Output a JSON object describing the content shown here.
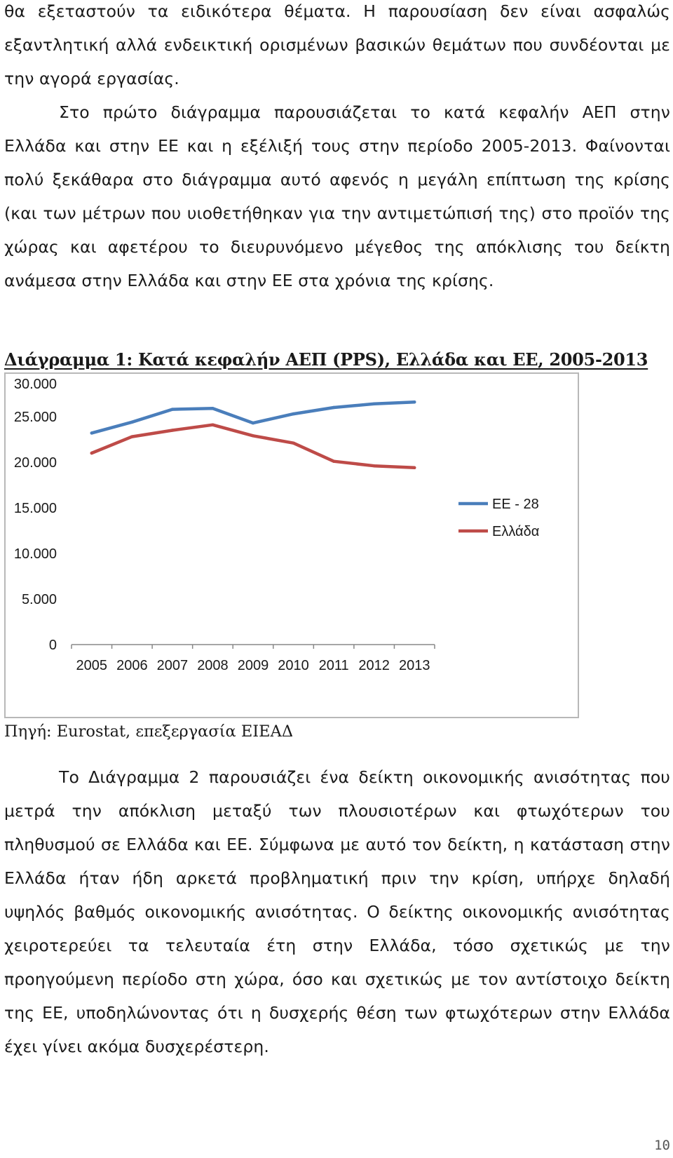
{
  "document": {
    "paragraph_1_part_a": "θα εξεταστούν τα ειδικότερα θέματα. Η παρουσίαση δεν είναι ασφαλώς εξαντλητική αλλά ενδεικτική ορισμένων βασικών θεμάτων που συνδέονται με την αγορά εργασίας.",
    "paragraph_1_part_b": "Στο πρώτο διάγραμμα παρουσιάζεται το κατά κεφαλήν ΑΕΠ στην Ελλάδα και στην ΕΕ και η εξέλιξή τους στην περίοδο 2005-2013. Φαίνονται πολύ ξεκάθαρα στο διάγραμμα αυτό αφενός η μεγάλη επίπτωση της κρίσης (και των μέτρων που υιοθετήθηκαν για την αντιμετώπισή της) στο προϊόν της χώρας και αφετέρου το διευρυνόμενο μέγεθος της απόκλισης του δείκτη ανάμεσα στην Ελλάδα και στην ΕΕ στα χρόνια της κρίσης.",
    "chart_caption": "Διάγραμμα 1: Κατά κεφαλήν ΑΕΠ (PPS), Ελλάδα και ΕΕ, 2005-2013",
    "source": "Πηγή: Eurostat, επεξεργασία ΕΙΕΑΔ",
    "paragraph_2": "Το Διάγραμμα 2 παρουσιάζει ένα δείκτη οικονομικής ανισότητας που μετρά την απόκλιση μεταξύ των πλουσιοτέρων και φτωχότερων του πληθυσμού σε Ελλάδα και ΕΕ. Σύμφωνα με αυτό τον δείκτη, η κατάσταση στην Ελλάδα ήταν ήδη αρκετά προβληματική πριν την κρίση, υπήρχε δηλαδή υψηλός βαθμός οικονομικής ανισότητας. Ο δείκτης οικονομικής ανισότητας χειροτερεύει τα τελευταία έτη στην Ελλάδα, τόσο σχετικώς με την προηγούμενη περίοδο στη χώρα, όσο και σχετικώς με τον αντίστοιχο δείκτη της ΕΕ, υποδηλώνοντας ότι η δυσχερής θέση των φτωχότερων στην Ελλάδα έχει γίνει ακόμα δυσχερέστερη.",
    "page_number": "10"
  },
  "chart_data": {
    "type": "line",
    "title": "Διάγραμμα 1: Κατά κεφαλήν ΑΕΠ (PPS), Ελλάδα και ΕΕ, 2005-2013",
    "xlabel": "",
    "ylabel": "",
    "categories": [
      "2005",
      "2006",
      "2007",
      "2008",
      "2009",
      "2010",
      "2011",
      "2012",
      "2013"
    ],
    "ylim": [
      0,
      30000
    ],
    "yticks": [
      0,
      5000,
      10000,
      15000,
      20000,
      25000,
      30000
    ],
    "ytick_labels": [
      "0",
      "5.000",
      "10.000",
      "15.000",
      "20.000",
      "25.000",
      "30.000"
    ],
    "grid": false,
    "legend_position": "right",
    "series": [
      {
        "name": "ΕΕ - 28",
        "color": "#4a7ebb",
        "values": [
          23200,
          24400,
          25800,
          25900,
          24300,
          25300,
          26000,
          26400,
          26600
        ]
      },
      {
        "name": "Ελλάδα",
        "color": "#be4b48",
        "values": [
          21000,
          22800,
          23500,
          24100,
          22900,
          22100,
          20100,
          19600,
          19400
        ]
      }
    ]
  }
}
